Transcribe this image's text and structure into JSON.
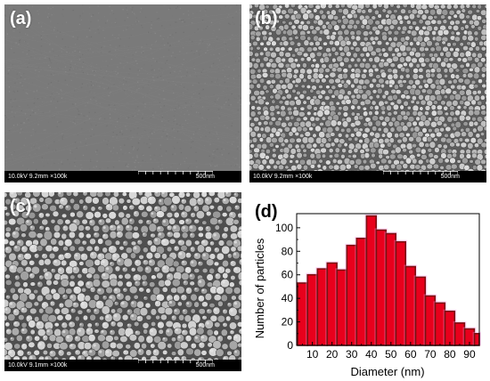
{
  "panels": {
    "a": {
      "label": "(a)",
      "params": "10.0kV 9.2mm ×100k",
      "scale": "500nm",
      "texture": "smooth",
      "tone": "#7a7a7a"
    },
    "b": {
      "label": "(b)",
      "params": "10.0kV 9.2mm ×100k",
      "scale": "500nm",
      "texture": "dense-particles",
      "tone": "#5d5d5d"
    },
    "c": {
      "label": "(c)",
      "params": "10.0kV 9.1mm ×100k",
      "scale": "500nm",
      "texture": "larger-particles",
      "tone": "#4f4f4f"
    }
  },
  "chart_data": {
    "type": "bar",
    "panel_label": "(d)",
    "xlabel": "Diameter (nm)",
    "ylabel": "Number of particles",
    "x": [
      5,
      10,
      15,
      20,
      25,
      30,
      35,
      40,
      45,
      50,
      55,
      60,
      65,
      70,
      75,
      80,
      85,
      90,
      95
    ],
    "values": [
      53,
      60,
      65,
      70,
      64,
      85,
      91,
      110,
      98,
      95,
      88,
      67,
      58,
      42,
      36,
      29,
      19,
      14,
      10
    ],
    "xlim": [
      2,
      95
    ],
    "ylim": [
      0,
      112
    ],
    "xticks": [
      10,
      20,
      30,
      40,
      50,
      60,
      70,
      80,
      90
    ],
    "yticks": [
      0,
      20,
      40,
      60,
      80,
      100
    ],
    "bar_color": "#e8001c",
    "bar_edge_color": "#7a1010",
    "bar_glow_color": "#ff9bf0",
    "grid": false
  }
}
